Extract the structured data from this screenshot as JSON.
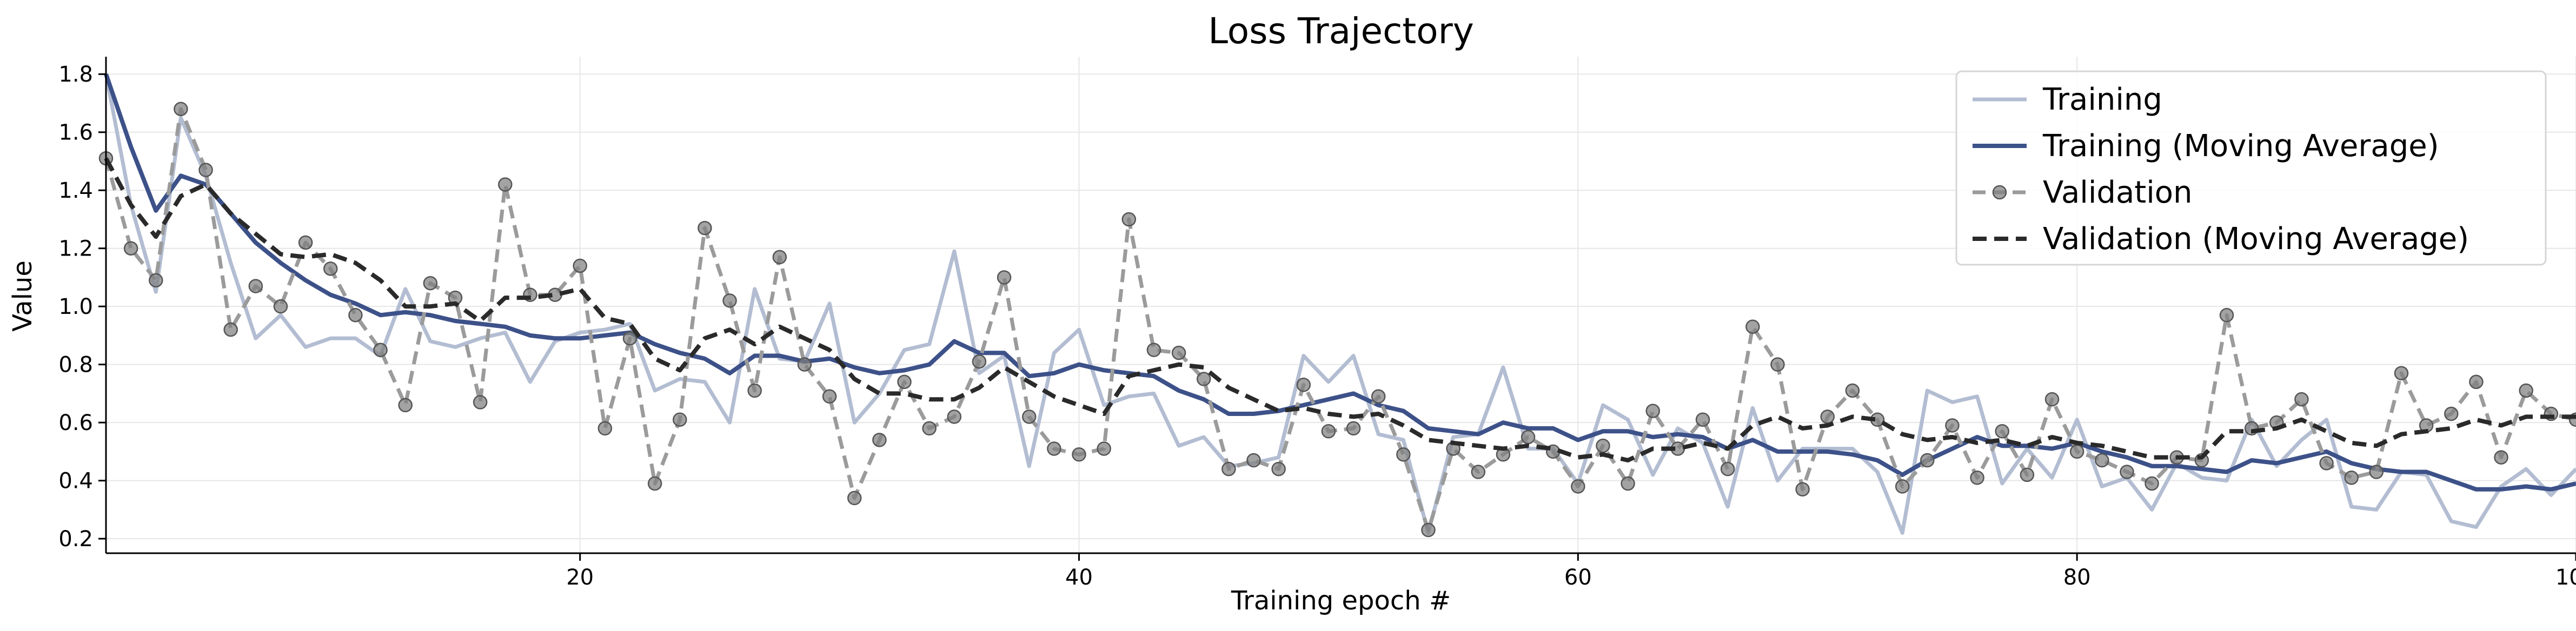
{
  "chart_data": {
    "type": "line",
    "title": "Loss Trajectory",
    "xlabel": "Training epoch #",
    "ylabel": "Value",
    "xlim": [
      1,
      100
    ],
    "ylim": [
      0.15,
      1.86
    ],
    "xticks": [
      20,
      40,
      60,
      80,
      100
    ],
    "yticks": [
      0.2,
      0.4,
      0.6,
      0.8,
      1.0,
      1.2,
      1.4,
      1.6,
      1.8
    ],
    "ytick_labels": [
      "0.2",
      "0.4",
      "0.6",
      "0.8",
      "1.0",
      "1.2",
      "1.4",
      "1.6",
      "1.8"
    ],
    "grid": true,
    "legend_position": "top-right",
    "x": [
      1,
      2,
      3,
      4,
      5,
      6,
      7,
      8,
      9,
      10,
      11,
      12,
      13,
      14,
      15,
      16,
      17,
      18,
      19,
      20,
      21,
      22,
      23,
      24,
      25,
      26,
      27,
      28,
      29,
      30,
      31,
      32,
      33,
      34,
      35,
      36,
      37,
      38,
      39,
      40,
      41,
      42,
      43,
      44,
      45,
      46,
      47,
      48,
      49,
      50,
      51,
      52,
      53,
      54,
      55,
      56,
      57,
      58,
      59,
      60,
      61,
      62,
      63,
      64,
      65,
      66,
      67,
      68,
      69,
      70,
      71,
      72,
      73,
      74,
      75,
      76,
      77,
      78,
      79,
      80,
      81,
      82,
      83,
      84,
      85,
      86,
      87,
      88,
      89,
      90,
      91,
      92,
      93,
      94,
      95,
      96,
      97,
      98,
      99,
      100
    ],
    "series": [
      {
        "name": "Training",
        "color": "#b3bdd2",
        "style": "solid",
        "marker": false,
        "values": [
          1.8,
          1.35,
          1.05,
          1.65,
          1.45,
          1.15,
          0.89,
          0.97,
          0.86,
          0.89,
          0.89,
          0.83,
          1.06,
          0.88,
          0.86,
          0.89,
          0.91,
          0.74,
          0.88,
          0.91,
          0.92,
          0.94,
          0.71,
          0.75,
          0.74,
          0.6,
          1.06,
          0.82,
          0.81,
          1.01,
          0.6,
          0.7,
          0.85,
          0.87,
          1.19,
          0.77,
          0.83,
          0.45,
          0.84,
          0.92,
          0.66,
          0.69,
          0.7,
          0.52,
          0.55,
          0.45,
          0.46,
          0.48,
          0.83,
          0.74,
          0.83,
          0.56,
          0.54,
          0.22,
          0.55,
          0.56,
          0.79,
          0.51,
          0.51,
          0.39,
          0.66,
          0.61,
          0.42,
          0.58,
          0.53,
          0.31,
          0.65,
          0.4,
          0.51,
          0.51,
          0.51,
          0.43,
          0.22,
          0.71,
          0.67,
          0.69,
          0.39,
          0.51,
          0.41,
          0.61,
          0.38,
          0.41,
          0.3,
          0.46,
          0.41,
          0.4,
          0.61,
          0.45,
          0.54,
          0.61,
          0.31,
          0.3,
          0.43,
          0.42,
          0.26,
          0.24,
          0.38,
          0.44,
          0.35,
          0.44
        ]
      },
      {
        "name": "Training (Moving Average)",
        "color": "#3d5189",
        "style": "solid",
        "marker": false,
        "values": [
          1.8,
          1.55,
          1.33,
          1.45,
          1.42,
          1.32,
          1.22,
          1.15,
          1.09,
          1.04,
          1.01,
          0.97,
          0.98,
          0.97,
          0.95,
          0.94,
          0.93,
          0.9,
          0.89,
          0.89,
          0.9,
          0.91,
          0.87,
          0.84,
          0.82,
          0.77,
          0.83,
          0.83,
          0.81,
          0.82,
          0.79,
          0.77,
          0.78,
          0.8,
          0.88,
          0.84,
          0.84,
          0.76,
          0.77,
          0.8,
          0.78,
          0.77,
          0.76,
          0.71,
          0.68,
          0.63,
          0.63,
          0.64,
          0.66,
          0.68,
          0.7,
          0.66,
          0.64,
          0.58,
          0.57,
          0.56,
          0.6,
          0.58,
          0.58,
          0.54,
          0.57,
          0.57,
          0.55,
          0.56,
          0.55,
          0.51,
          0.54,
          0.5,
          0.5,
          0.5,
          0.49,
          0.47,
          0.42,
          0.47,
          0.51,
          0.55,
          0.52,
          0.52,
          0.51,
          0.53,
          0.5,
          0.48,
          0.45,
          0.45,
          0.44,
          0.43,
          0.47,
          0.46,
          0.48,
          0.5,
          0.46,
          0.44,
          0.43,
          0.43,
          0.4,
          0.37,
          0.37,
          0.38,
          0.37,
          0.39
        ]
      },
      {
        "name": "Validation",
        "color": "#9b9b9b",
        "style": "dashed",
        "marker": true,
        "values": [
          1.51,
          1.2,
          1.09,
          1.68,
          1.47,
          0.92,
          1.07,
          1.0,
          1.22,
          1.13,
          0.97,
          0.85,
          0.66,
          1.08,
          1.03,
          0.67,
          1.42,
          1.04,
          1.04,
          1.14,
          0.58,
          0.89,
          0.39,
          0.61,
          1.27,
          1.02,
          0.71,
          1.17,
          0.8,
          0.69,
          0.34,
          0.54,
          0.74,
          0.58,
          0.62,
          0.81,
          1.1,
          0.62,
          0.51,
          0.49,
          0.51,
          1.3,
          0.85,
          0.84,
          0.75,
          0.44,
          0.47,
          0.44,
          0.73,
          0.57,
          0.58,
          0.69,
          0.49,
          0.23,
          0.51,
          0.43,
          0.49,
          0.55,
          0.5,
          0.38,
          0.52,
          0.39,
          0.64,
          0.51,
          0.61,
          0.44,
          0.93,
          0.8,
          0.37,
          0.62,
          0.71,
          0.61,
          0.38,
          0.47,
          0.59,
          0.41,
          0.57,
          0.42,
          0.68,
          0.5,
          0.47,
          0.43,
          0.39,
          0.48,
          0.47,
          0.97,
          0.58,
          0.6,
          0.68,
          0.46,
          0.41,
          0.43,
          0.77,
          0.59,
          0.63,
          0.74,
          0.48,
          0.71,
          0.63,
          0.61
        ]
      },
      {
        "name": "Validation (Moving Average)",
        "color": "#2a2a2a",
        "style": "dashed",
        "marker": false,
        "values": [
          1.51,
          1.35,
          1.24,
          1.38,
          1.42,
          1.32,
          1.25,
          1.18,
          1.17,
          1.18,
          1.15,
          1.09,
          1.0,
          1.0,
          1.01,
          0.95,
          1.03,
          1.03,
          1.04,
          1.06,
          0.96,
          0.94,
          0.82,
          0.78,
          0.89,
          0.92,
          0.87,
          0.93,
          0.89,
          0.85,
          0.75,
          0.7,
          0.7,
          0.68,
          0.68,
          0.72,
          0.79,
          0.74,
          0.69,
          0.66,
          0.63,
          0.76,
          0.78,
          0.8,
          0.79,
          0.72,
          0.68,
          0.64,
          0.65,
          0.63,
          0.62,
          0.63,
          0.59,
          0.54,
          0.53,
          0.52,
          0.51,
          0.52,
          0.51,
          0.48,
          0.49,
          0.47,
          0.51,
          0.51,
          0.53,
          0.51,
          0.59,
          0.62,
          0.58,
          0.59,
          0.62,
          0.61,
          0.56,
          0.54,
          0.55,
          0.53,
          0.54,
          0.52,
          0.55,
          0.53,
          0.52,
          0.5,
          0.48,
          0.48,
          0.48,
          0.57,
          0.57,
          0.58,
          0.61,
          0.57,
          0.53,
          0.52,
          0.56,
          0.57,
          0.58,
          0.61,
          0.59,
          0.62,
          0.62,
          0.62
        ]
      }
    ]
  }
}
